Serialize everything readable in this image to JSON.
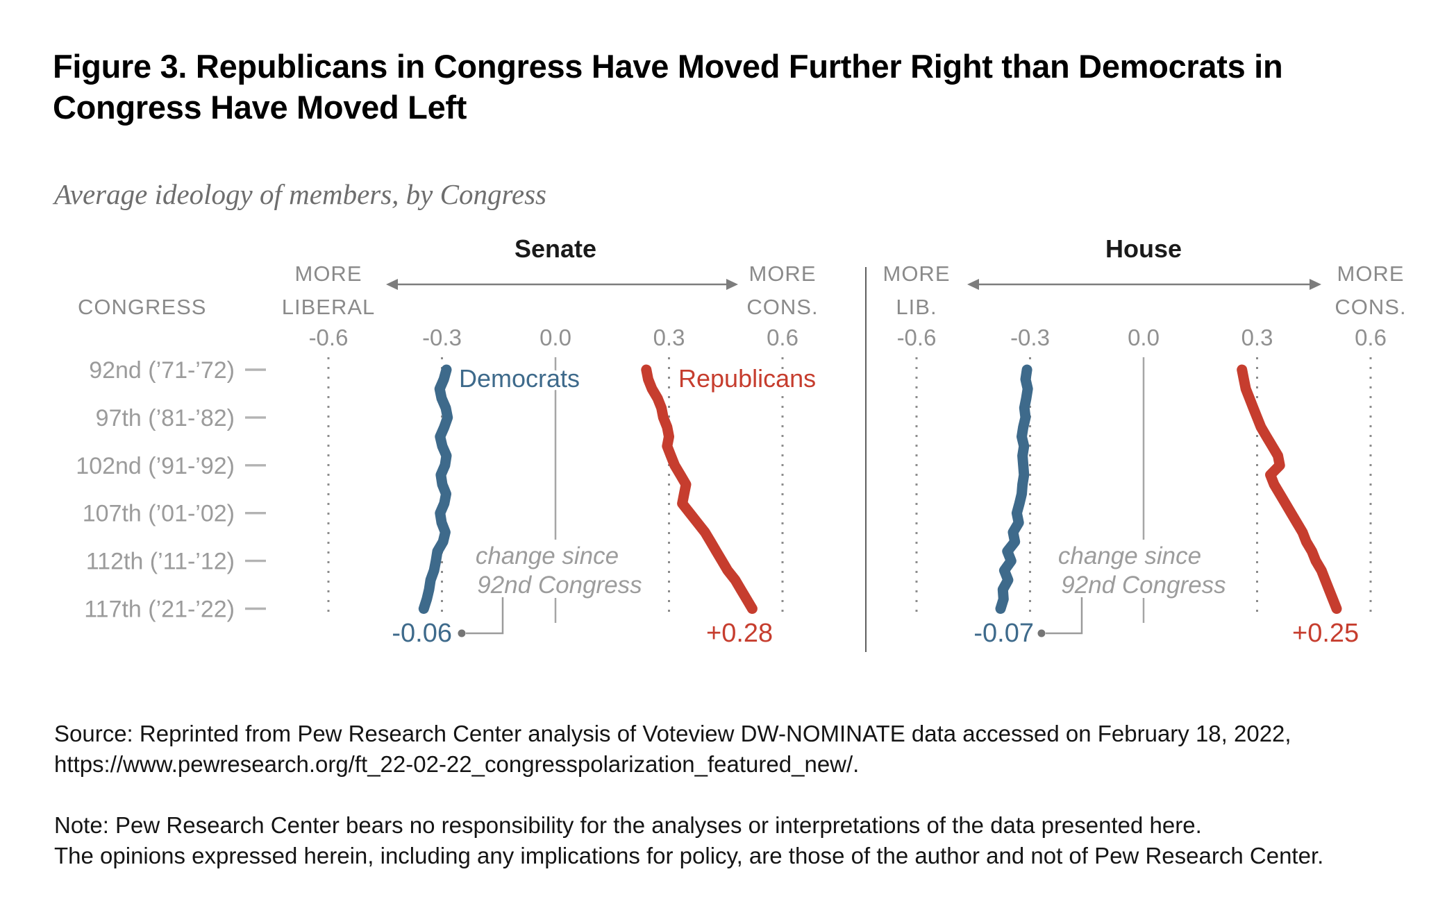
{
  "figure": {
    "title_line1": "Figure 3. Republicans in Congress Have Moved Further Right than Democrats in",
    "title_line2": "Congress Have Moved Left",
    "subtitle": "Average ideology of members, by Congress",
    "source_line1": "Source: Reprinted from Pew Research Center analysis of Voteview DW-NOMINATE data accessed on February 18, 2022,",
    "source_line2": "https://www.pewresearch.org/ft_22-02-22_congresspolarization_featured_new/.",
    "note_line1": "Note: Pew Research Center bears no responsibility for the analyses or interpretations of the data presented here.",
    "note_line2": "The opinions expressed herein, including any implications for policy, are those of the author and not of Pew Research Center."
  },
  "chart_data": {
    "type": "line",
    "orientation": "vertical-time",
    "congress_axis_header": "CONGRESS",
    "congresses": [
      92,
      93,
      94,
      95,
      96,
      97,
      98,
      99,
      100,
      101,
      102,
      103,
      104,
      105,
      106,
      107,
      108,
      109,
      110,
      111,
      112,
      113,
      114,
      115,
      116,
      117
    ],
    "row_ticks": [
      {
        "congress": 92,
        "label": "92nd (’71-’72)"
      },
      {
        "congress": 97,
        "label": "97th (’81-’82)"
      },
      {
        "congress": 102,
        "label": "102nd (’91-’92)"
      },
      {
        "congress": 107,
        "label": "107th (’01-’02)"
      },
      {
        "congress": 112,
        "label": "112th (’11-’12)"
      },
      {
        "congress": 117,
        "label": "117th (’21-’22)"
      }
    ],
    "value_ticks": [
      "-0.6",
      "-0.3",
      "0.0",
      "0.3",
      "0.6"
    ],
    "value_tick_values": [
      -0.6,
      -0.3,
      0,
      0.3,
      0.6
    ],
    "xlim": [
      -0.75,
      0.75
    ],
    "colors": {
      "democrat": "#3e6a8b",
      "republican": "#c63d2e",
      "grid": "#8c8c8c",
      "zero_line": "#a6a6a6",
      "divider": "#5f5f5f",
      "arrow": "#7d7d7d",
      "connector": "#9b9b9b",
      "connector_dot": "#757575",
      "row_dash": "#b3b3b3"
    },
    "panels": [
      {
        "title": "Senate",
        "left_label": [
          "MORE",
          "LIBERAL"
        ],
        "right_label": [
          "MORE",
          "CONS."
        ],
        "annotation": [
          "change since",
          "92nd Congress"
        ],
        "show_series_names": true,
        "series": [
          {
            "name": "Democrats",
            "party": "democrat",
            "values": [
              -0.288,
              -0.295,
              -0.306,
              -0.301,
              -0.29,
              -0.285,
              -0.294,
              -0.305,
              -0.299,
              -0.288,
              -0.292,
              -0.303,
              -0.299,
              -0.289,
              -0.294,
              -0.305,
              -0.301,
              -0.291,
              -0.297,
              -0.312,
              -0.316,
              -0.321,
              -0.33,
              -0.334,
              -0.34,
              -0.348
            ],
            "change_label": "-0.06"
          },
          {
            "name": "Republicans",
            "party": "republican",
            "values": [
              0.24,
              0.245,
              0.255,
              0.27,
              0.28,
              0.285,
              0.295,
              0.3,
              0.295,
              0.305,
              0.315,
              0.33,
              0.345,
              0.34,
              0.335,
              0.355,
              0.375,
              0.395,
              0.41,
              0.425,
              0.44,
              0.455,
              0.475,
              0.49,
              0.505,
              0.52
            ],
            "change_label": "+0.28"
          }
        ]
      },
      {
        "title": "House",
        "left_label": [
          "MORE",
          "LIB."
        ],
        "right_label": [
          "MORE",
          "CONS."
        ],
        "annotation": [
          "change since",
          "92nd Congress"
        ],
        "show_series_names": false,
        "series": [
          {
            "name": "Democrats",
            "party": "democrat",
            "values": [
              -0.308,
              -0.312,
              -0.306,
              -0.31,
              -0.315,
              -0.312,
              -0.318,
              -0.322,
              -0.316,
              -0.32,
              -0.318,
              -0.316,
              -0.32,
              -0.322,
              -0.328,
              -0.335,
              -0.33,
              -0.345,
              -0.34,
              -0.36,
              -0.35,
              -0.368,
              -0.358,
              -0.372,
              -0.37,
              -0.378
            ],
            "change_label": "-0.07"
          },
          {
            "name": "Republicans",
            "party": "republican",
            "values": [
              0.26,
              0.265,
              0.27,
              0.28,
              0.29,
              0.3,
              0.31,
              0.325,
              0.34,
              0.355,
              0.36,
              0.335,
              0.345,
              0.36,
              0.375,
              0.39,
              0.405,
              0.42,
              0.43,
              0.445,
              0.455,
              0.47,
              0.48,
              0.49,
              0.5,
              0.51
            ],
            "change_label": "+0.25"
          }
        ]
      }
    ]
  }
}
